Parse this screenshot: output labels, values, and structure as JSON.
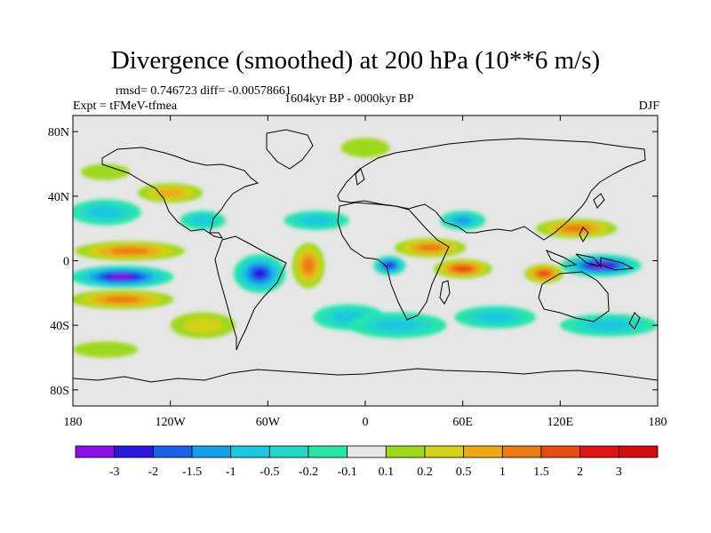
{
  "title": "Divergence (smoothed) at 200 hPa (10**6 m/s)",
  "stats_text": "rmsd= 0.746723 diff= -0.00578661",
  "experiment_text": "Expt = tFMeV-tfmea",
  "period_text": "1604kyr BP - 0000kyr BP",
  "season_text": "DJF",
  "chart_data": {
    "type": "heatmap",
    "title": "Divergence (smoothed) at 200 hPa (10**6 m/s)",
    "projection": "cylindrical-equidistant",
    "xlim": [
      -180,
      180
    ],
    "ylim": [
      -90,
      90
    ],
    "x_ticks": [
      {
        "value": -180,
        "label": "180"
      },
      {
        "value": -120,
        "label": "120W"
      },
      {
        "value": -60,
        "label": "60W"
      },
      {
        "value": 0,
        "label": "0"
      },
      {
        "value": 60,
        "label": "60E"
      },
      {
        "value": 120,
        "label": "120E"
      },
      {
        "value": 180,
        "label": "180"
      }
    ],
    "y_ticks": [
      {
        "value": 80,
        "label": "80N"
      },
      {
        "value": 40,
        "label": "40N"
      },
      {
        "value": 0,
        "label": "0"
      },
      {
        "value": -40,
        "label": "40S"
      },
      {
        "value": -80,
        "label": "80S"
      }
    ],
    "colorbar": {
      "levels": [
        -3,
        -2,
        -1.5,
        -1,
        -0.5,
        -0.2,
        -0.1,
        0.1,
        0.2,
        0.5,
        1,
        1.5,
        2,
        3
      ],
      "labels": [
        "-3",
        "-2",
        "-1.5",
        "-1",
        "-0.5",
        "-0.2",
        "-0.1",
        "0.1",
        "0.2",
        "0.5",
        "1",
        "1.5",
        "2",
        "3"
      ],
      "colors": [
        "#8b10e8",
        "#2a18e0",
        "#1a60e8",
        "#12a0e8",
        "#1ac8e0",
        "#20d8c8",
        "#28e6a8",
        "#e6e6e6",
        "#9ed81a",
        "#d2d218",
        "#ecaa12",
        "#ec7a12",
        "#e84a12",
        "#e41212",
        "#d40c0c"
      ]
    },
    "features": [
      {
        "lon": -150,
        "lat": -10,
        "rx": 32,
        "ry": 7,
        "value": -3
      },
      {
        "lon": -145,
        "lat": 6,
        "rx": 34,
        "ry": 6,
        "value": 1.5
      },
      {
        "lon": -150,
        "lat": -24,
        "rx": 32,
        "ry": 6,
        "value": 1.5
      },
      {
        "lon": -65,
        "lat": -8,
        "rx": 16,
        "ry": 12,
        "value": -2
      },
      {
        "lon": -35,
        "lat": -3,
        "rx": 10,
        "ry": 14,
        "value": 1.5
      },
      {
        "lon": 15,
        "lat": -3,
        "rx": 10,
        "ry": 6,
        "value": -2
      },
      {
        "lon": 40,
        "lat": 8,
        "rx": 22,
        "ry": 6,
        "value": 1.5
      },
      {
        "lon": 60,
        "lat": -5,
        "rx": 18,
        "ry": 6,
        "value": 2
      },
      {
        "lon": 145,
        "lat": -3,
        "rx": 25,
        "ry": 7,
        "value": -3
      },
      {
        "lon": 110,
        "lat": -8,
        "rx": 12,
        "ry": 6,
        "value": 2
      },
      {
        "lon": 130,
        "lat": 20,
        "rx": 25,
        "ry": 6,
        "value": 1.5
      },
      {
        "lon": 60,
        "lat": 25,
        "rx": 14,
        "ry": 6,
        "value": -1
      },
      {
        "lon": -160,
        "lat": 30,
        "rx": 22,
        "ry": 8,
        "value": -0.5
      },
      {
        "lon": -100,
        "lat": 25,
        "rx": 14,
        "ry": 6,
        "value": -0.5
      },
      {
        "lon": -120,
        "lat": 42,
        "rx": 20,
        "ry": 6,
        "value": 1
      },
      {
        "lon": -10,
        "lat": -35,
        "rx": 22,
        "ry": 8,
        "value": -0.5
      },
      {
        "lon": -30,
        "lat": 25,
        "rx": 20,
        "ry": 6,
        "value": -0.5
      },
      {
        "lon": 20,
        "lat": -40,
        "rx": 30,
        "ry": 8,
        "value": -0.5
      },
      {
        "lon": 80,
        "lat": -35,
        "rx": 25,
        "ry": 7,
        "value": -0.5
      },
      {
        "lon": 150,
        "lat": -40,
        "rx": 30,
        "ry": 7,
        "value": -0.5
      },
      {
        "lon": -100,
        "lat": -40,
        "rx": 20,
        "ry": 8,
        "value": 0.5
      },
      {
        "lon": -160,
        "lat": -55,
        "rx": 20,
        "ry": 5,
        "value": 0.2
      },
      {
        "lon": 0,
        "lat": 70,
        "rx": 15,
        "ry": 6,
        "value": 0.2
      },
      {
        "lon": -160,
        "lat": 55,
        "rx": 15,
        "ry": 5,
        "value": 0.2
      }
    ]
  }
}
